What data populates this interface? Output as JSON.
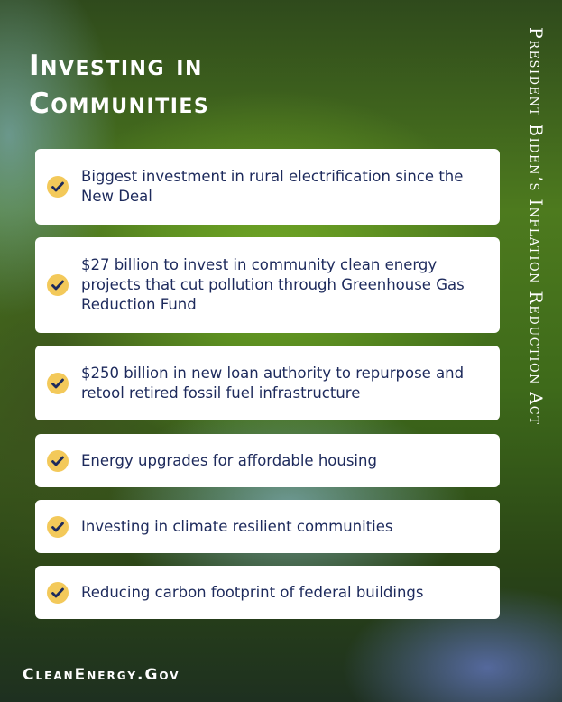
{
  "title_lines": [
    "Investing in",
    "Communities"
  ],
  "side_caption": "President Biden’s Inflation Reduction Act",
  "items": [
    "Biggest investment in rural electrification since the New Deal",
    "$27 billion to invest in community clean energy projects that cut pollution through Greenhouse Gas Reduction Fund",
    "$250 billion in new loan authority to repurpose and retool retired fossil fuel infrastructure",
    "Energy upgrades for affordable housing",
    "Investing in climate resilient communities",
    "Reducing carbon footprint of federal buildings"
  ],
  "item_icon": "check-circle-icon",
  "footer": "CleanEnergy.Gov",
  "colors": {
    "text": "#1d2a5c",
    "check_bg": "#f3c95a",
    "card": "#ffffff"
  }
}
